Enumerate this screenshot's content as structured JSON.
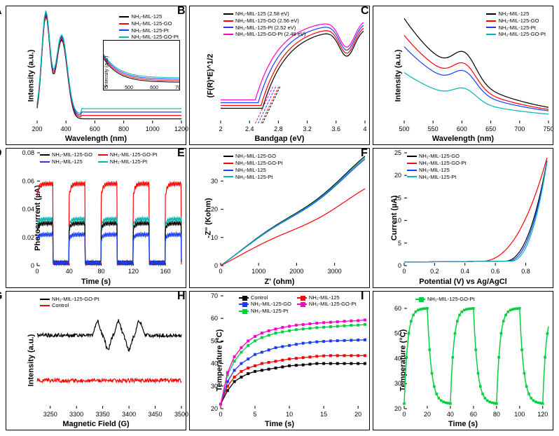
{
  "colors": {
    "mil": "#000000",
    "go": "#ff0000",
    "pt": "#1a3cff",
    "gopt": "#00b6b0",
    "ctrl": "#000000",
    "green": "#00d040",
    "magenta": "#ff00cc"
  },
  "samples": {
    "mil": "NH₂-MIL-125",
    "go": "NH₂-MIL-125-GO",
    "pt": "NH₂-MIL-125-Pt",
    "gopt": "NH₂-MIL-125-GO-Pt",
    "ctrl": "Control"
  },
  "A": {
    "label": "A",
    "xlabel": "Wavelength (nm)",
    "ylabel": "Intensity (a.u.)",
    "xlim": [
      200,
      1200
    ],
    "xticks": [
      200,
      400,
      600,
      800,
      1000,
      1200
    ],
    "ylim": [
      0,
      10
    ],
    "inset_xlim": [
      400,
      700
    ],
    "inset_xticks": [
      400,
      500,
      600,
      700
    ]
  },
  "B": {
    "label": "B",
    "xlabel": "Bandgap (eV)",
    "ylabel": "(F(R)*E)^1/2",
    "xlim": [
      2.0,
      4.0
    ],
    "xticks": [
      2.0,
      2.4,
      2.8,
      3.2,
      3.6,
      4.0
    ],
    "ylim": [
      0,
      6
    ],
    "legend": [
      {
        "k": "mil",
        "t": "NH₂-MIL-125 (2.58 eV)"
      },
      {
        "k": "go",
        "t": "NH₂-MIL-125-GO (2.56 eV)"
      },
      {
        "k": "pt",
        "t": "NH₂-MIL-125-Pt (2.52 eV)"
      },
      {
        "k": "gopt",
        "t": "NH₂-MIL-125-GO-Pt (2.48 eV)"
      }
    ],
    "cmap": {
      "mil": "#000000",
      "go": "#ff0000",
      "pt": "#1a3cff",
      "gopt": "#ff00cc"
    }
  },
  "C": {
    "label": "C",
    "xlabel": "Wavelength (nm)",
    "ylabel": "Intensity (a.u.)",
    "xlim": [
      500,
      750
    ],
    "xticks": [
      500,
      550,
      600,
      650,
      700,
      750
    ],
    "ylim": [
      0,
      10
    ]
  },
  "D": {
    "label": "D",
    "xlabel": "Time (s)",
    "ylabel": "Photocurrent (µA)",
    "xlim": [
      0,
      180
    ],
    "xticks": [
      0,
      40,
      80,
      120,
      160
    ],
    "ylim": [
      0,
      0.08
    ],
    "yticks": [
      0,
      0.02,
      0.04,
      0.06,
      0.08
    ],
    "period": 40,
    "duty": 0.5,
    "levels": {
      "gopt": 0.058,
      "pt": 0.033,
      "go": 0.03,
      "mil": 0.022
    },
    "cmap": {
      "go": "#000000",
      "gopt": "#ff0000",
      "mil": "#1a3cff",
      "pt": "#00b6b0"
    }
  },
  "E": {
    "label": "E",
    "xlabel": "Z' (ohm)",
    "ylabel": "-Z'' (Kohm)",
    "xlim": [
      0,
      3800
    ],
    "xticks": [
      0,
      1000,
      2000,
      3000
    ],
    "ylim": [
      0,
      40
    ],
    "yticks": [
      0,
      10,
      20,
      30
    ],
    "cmap": {
      "go": "#000000",
      "gopt": "#ff0000",
      "mil": "#1a3cff",
      "pt": "#00b6b0"
    }
  },
  "F": {
    "label": "F",
    "xlabel": "Potential (V) vs Ag/AgCl",
    "ylabel": "Current (µA)",
    "xlim": [
      0,
      0.95
    ],
    "xticks": [
      0,
      0.2,
      0.4,
      0.6,
      0.8
    ],
    "ylim": [
      0,
      25
    ],
    "yticks": [
      0,
      5,
      10,
      15,
      20,
      25
    ],
    "rise": {
      "go": 0.66,
      "gopt": 0.5,
      "mil": 0.68,
      "pt": 0.7
    },
    "cmap": {
      "go": "#000000",
      "gopt": "#ff0000",
      "mil": "#1a3cff",
      "pt": "#00b6b0"
    }
  },
  "G": {
    "label": "G",
    "xlabel": "Magnetic Field (G)",
    "ylabel": "Intensity (a.u.)",
    "xlim": [
      3225,
      3500
    ],
    "xticks": [
      3250,
      3300,
      3350,
      3400,
      3450,
      3500
    ],
    "ylim": [
      0,
      10
    ]
  },
  "H": {
    "label": "H",
    "xlabel": "Time (s)",
    "ylabel": "Temperature (°C)",
    "xlim": [
      0,
      21
    ],
    "xticks": [
      0,
      5,
      10,
      15,
      20
    ],
    "ylim": [
      20,
      70
    ],
    "yticks": [
      20,
      30,
      40,
      50,
      60,
      70
    ],
    "series": {
      "ctrl": [
        22,
        28,
        32,
        34,
        35.5,
        36.5,
        37,
        37.5,
        38,
        38.5,
        39,
        39.2,
        39.4,
        39.7,
        40.0,
        40.0,
        40.0,
        40.0,
        40.0,
        40.0,
        40.0,
        40.0
      ],
      "mil": [
        22,
        30,
        34,
        36.5,
        38,
        39,
        40,
        40.5,
        41,
        41.5,
        42,
        42.3,
        42.6,
        42.9,
        43.2,
        43.4,
        43.5,
        43.5,
        43.5,
        43.5,
        43.5,
        43.5
      ],
      "go": [
        22,
        32,
        37,
        40,
        42,
        44,
        45,
        46,
        47,
        47.5,
        48,
        48.5,
        49,
        49.3,
        49.6,
        49.8,
        50,
        50.1,
        50.2,
        50.3,
        50.4,
        50.5
      ],
      "pt": [
        22,
        35,
        41,
        45,
        48,
        50,
        51.5,
        52.5,
        53.5,
        54,
        54.5,
        55,
        55.3,
        55.6,
        55.9,
        56.1,
        56.3,
        56.5,
        56.7,
        56.9,
        57,
        57.3
      ],
      "gopt": [
        22,
        36,
        43,
        47,
        50,
        52,
        53.5,
        54.5,
        55.3,
        56,
        56.5,
        57,
        57.3,
        57.6,
        57.9,
        58.1,
        58.3,
        58.5,
        58.7,
        58.9,
        59,
        59.3
      ]
    },
    "cmap": {
      "ctrl": "#000000",
      "mil": "#ff0000",
      "go": "#1a3cff",
      "pt": "#00d040",
      "gopt": "#ff00cc"
    }
  },
  "I": {
    "label": "I",
    "xlabel": "Time (s)",
    "ylabel": "Temperature (°C)",
    "xlim": [
      0,
      125
    ],
    "xticks": [
      0,
      20,
      40,
      60,
      80,
      100,
      120
    ],
    "ylim": [
      20,
      65
    ],
    "yticks": [
      20,
      30,
      40,
      50,
      60
    ],
    "period": 40,
    "onfrac": 0.5,
    "hi": 60,
    "lo": 22
  }
}
